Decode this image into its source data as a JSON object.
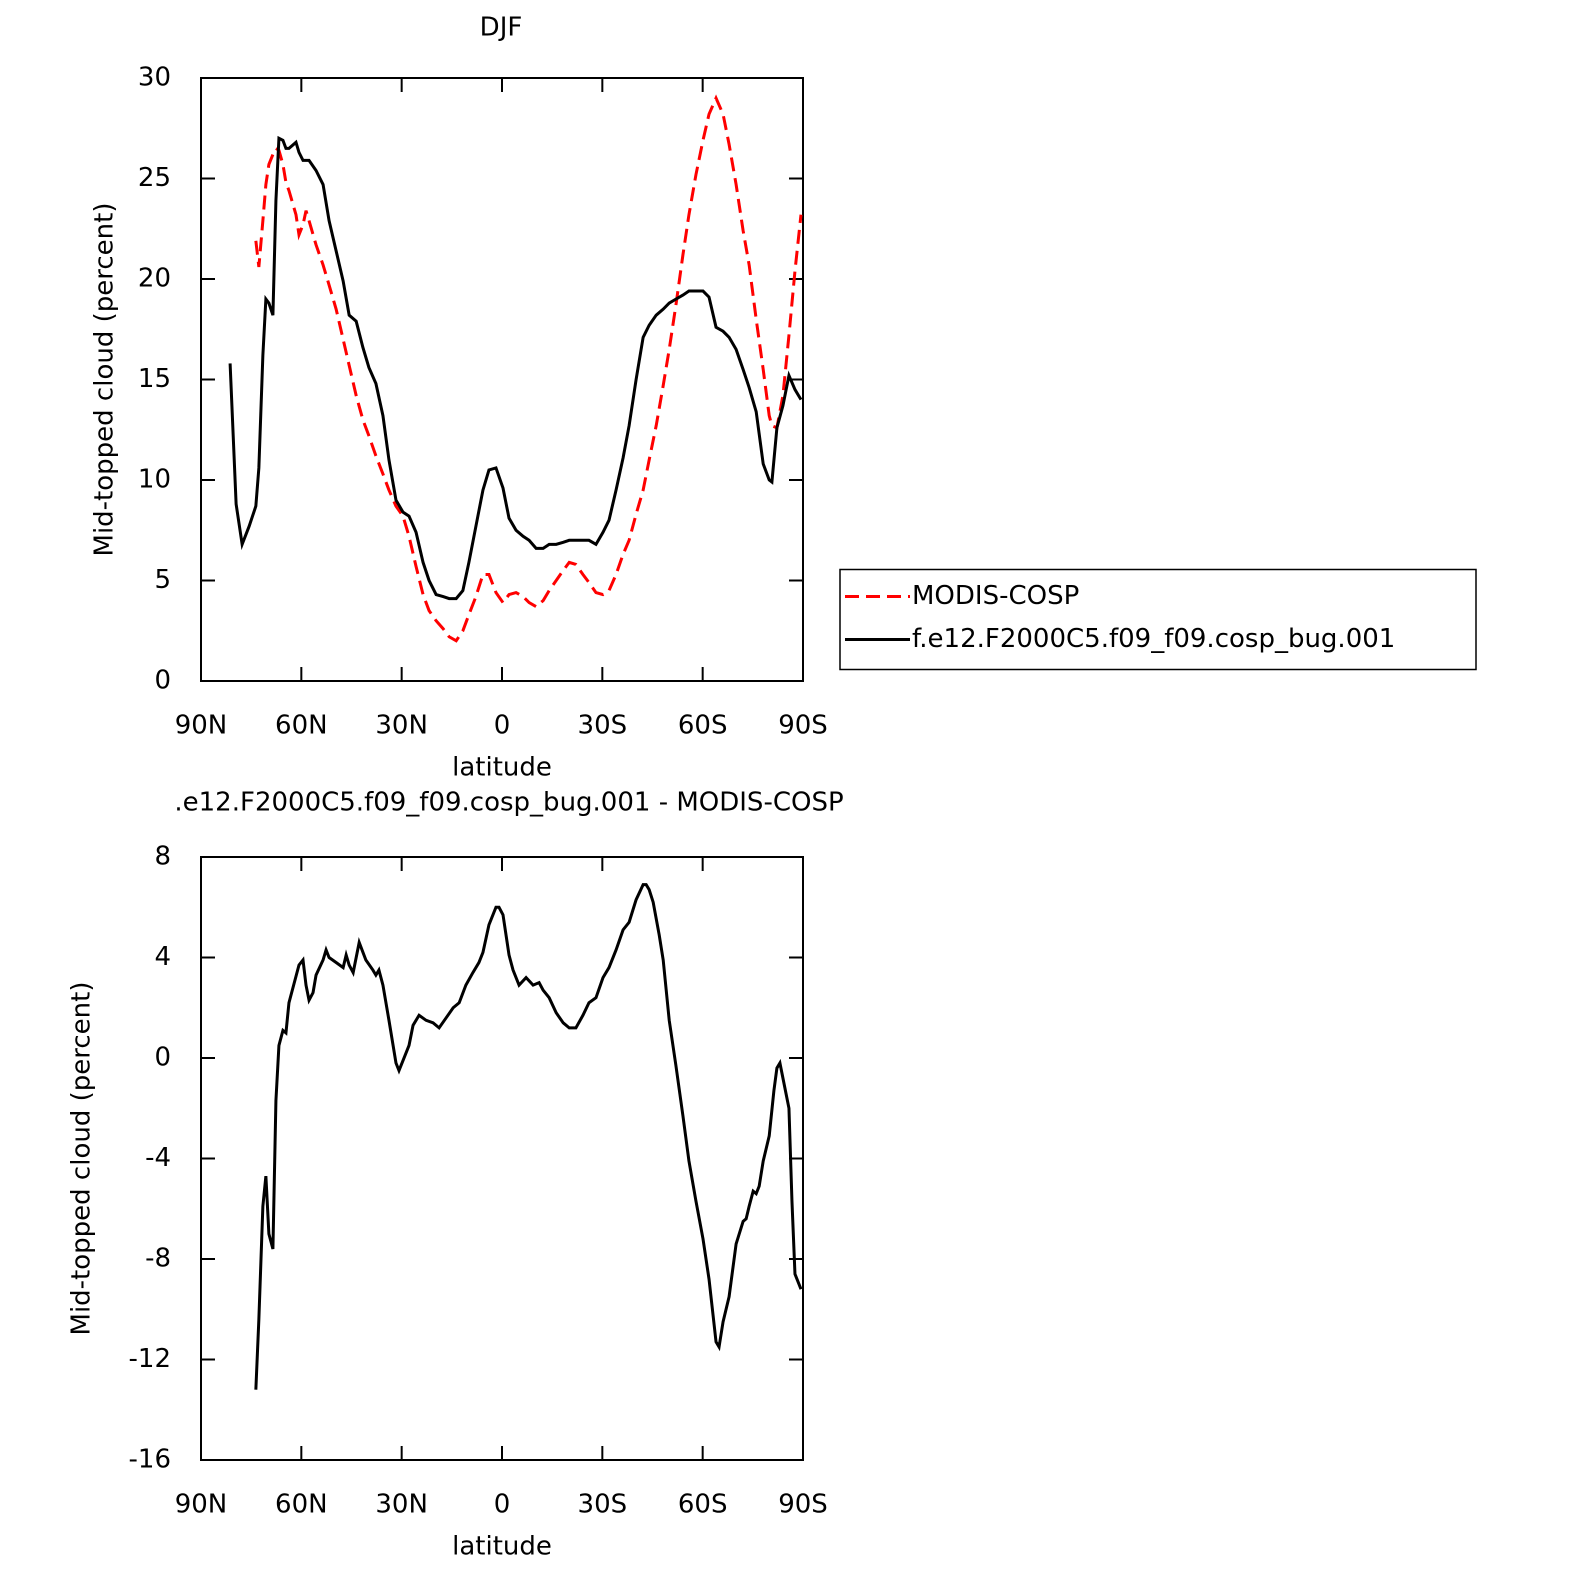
{
  "chart_data": [
    {
      "type": "line",
      "title": "DJF",
      "xlabel": "latitude",
      "ylabel": "Mid-topped cloud (percent)",
      "xlim": [
        90,
        -90
      ],
      "xticks": [
        {
          "value": 90,
          "label": "90N"
        },
        {
          "value": 60,
          "label": "60N"
        },
        {
          "value": 30,
          "label": "30N"
        },
        0,
        {
          "value": -30,
          "label": "30S"
        },
        {
          "value": -60,
          "label": "60S"
        },
        {
          "value": -90,
          "label": "90S"
        }
      ],
      "ylim": [
        0,
        30
      ],
      "yticks": [
        0,
        5,
        10,
        15,
        20,
        25,
        30
      ],
      "legend": "right",
      "x": [
        81.3,
        79.5,
        77.7,
        75.6,
        73.6,
        72.7,
        71.5,
        70.6,
        69.7,
        68.5,
        67.6,
        66.7,
        65.5,
        64.6,
        63.7,
        61.6,
        60.7,
        59.5,
        58.6,
        57.7,
        55.6,
        53.5,
        51.7,
        49.6,
        47.5,
        45.7,
        43.6,
        41.6,
        39.8,
        37.7,
        35.6,
        33.8,
        31.7,
        29.6,
        27.8,
        25.7,
        23.6,
        21.8,
        19.7,
        17.6,
        15.8,
        13.7,
        11.7,
        9.9,
        7.8,
        5.7,
        3.9,
        1.8,
        -0.3,
        -2.1,
        -4.2,
        -6.3,
        -8.1,
        -10.2,
        -12.3,
        -14.1,
        -16.2,
        -18.3,
        -20.1,
        -22.1,
        -24.2,
        -26.0,
        -28.1,
        -30.2,
        -32.0,
        -34.1,
        -36.2,
        -38.0,
        -40.1,
        -42.2,
        -44.0,
        -46.1,
        -48.2,
        -50.0,
        -52.0,
        -54.1,
        -55.9,
        -58.0,
        -60.1,
        -61.9,
        -64.0,
        -66.1,
        -67.9,
        -70.0,
        -72.1,
        -73.9,
        -76.0,
        -78.1,
        -79.9,
        -80.7,
        -82.2,
        -84.0,
        -85.8,
        -87.6,
        -89.4
      ],
      "series": [
        {
          "name": "MODIS-COSP",
          "color": "#ff0000",
          "linestyle": "dashed",
          "values": [
            null,
            null,
            null,
            null,
            21.9,
            20.6,
            22.9,
            24.7,
            25.7,
            26.2,
            26.5,
            26.4,
            25.7,
            24.8,
            24.4,
            23.2,
            22.2,
            22.7,
            23.4,
            22.9,
            21.7,
            20.7,
            19.7,
            18.5,
            17.0,
            15.7,
            14.2,
            13.0,
            12.2,
            11.2,
            10.3,
            9.5,
            8.7,
            8.2,
            7.2,
            5.7,
            4.3,
            3.5,
            3.0,
            2.6,
            2.2,
            2.0,
            2.5,
            3.3,
            4.2,
            5.3,
            5.3,
            4.4,
            3.9,
            4.3,
            4.4,
            4.2,
            3.9,
            3.7,
            4.0,
            4.5,
            5.0,
            5.5,
            5.9,
            5.8,
            5.3,
            4.9,
            4.4,
            4.3,
            4.5,
            5.3,
            6.3,
            7.0,
            8.3,
            9.5,
            11.0,
            12.7,
            14.7,
            16.5,
            18.7,
            21.2,
            23.2,
            25.2,
            26.9,
            28.2,
            29.0,
            28.2,
            26.7,
            24.7,
            22.4,
            20.7,
            18.0,
            15.5,
            13.2,
            12.7,
            12.6,
            14.2,
            17.2,
            20.4,
            23.2
          ]
        },
        {
          "name": "f.e12.F2000C5.f09_f09.cosp_bug.001",
          "color": "#000000",
          "linestyle": "solid",
          "values": [
            15.8,
            8.8,
            6.8,
            7.7,
            8.7,
            10.6,
            16.2,
            19.0,
            18.8,
            18.2,
            23.9,
            27.0,
            26.9,
            26.5,
            26.5,
            26.8,
            26.3,
            25.9,
            25.9,
            25.9,
            25.4,
            24.7,
            22.9,
            21.4,
            19.9,
            18.2,
            17.9,
            16.6,
            15.6,
            14.8,
            13.2,
            11.0,
            9.0,
            8.4,
            8.2,
            7.4,
            5.9,
            5.0,
            4.3,
            4.2,
            4.1,
            4.1,
            4.5,
            5.9,
            7.7,
            9.5,
            10.5,
            10.6,
            9.6,
            8.1,
            7.5,
            7.2,
            7.0,
            6.6,
            6.6,
            6.8,
            6.8,
            6.9,
            7.0,
            7.0,
            7.0,
            7.0,
            6.8,
            7.4,
            8.0,
            9.5,
            11.1,
            12.7,
            15.0,
            17.1,
            17.7,
            18.2,
            18.5,
            18.8,
            19.0,
            19.2,
            19.4,
            19.4,
            19.4,
            19.1,
            17.6,
            17.4,
            17.1,
            16.5,
            15.5,
            14.6,
            13.4,
            10.8,
            10.0,
            9.9,
            12.6,
            13.7,
            15.2,
            14.5,
            14.0
          ]
        }
      ]
    },
    {
      "type": "line",
      "title": ".e12.F2000C5.f09_f09.cosp_bug.001 - MODIS-COSP",
      "xlabel": "latitude",
      "ylabel": "Mid-topped cloud (percent)",
      "xlim": [
        90,
        -90
      ],
      "xticks": [
        {
          "value": 90,
          "label": "90N"
        },
        {
          "value": 60,
          "label": "60N"
        },
        {
          "value": 30,
          "label": "30N"
        },
        0,
        {
          "value": -30,
          "label": "30S"
        },
        {
          "value": -60,
          "label": "60S"
        },
        {
          "value": -90,
          "label": "90S"
        }
      ],
      "ylim": [
        -16,
        8
      ],
      "yticks": [
        -16,
        -12,
        -8,
        -4,
        0,
        4,
        8
      ],
      "x": [
        73.6,
        72.7,
        71.5,
        70.6,
        69.7,
        68.5,
        67.6,
        66.7,
        65.5,
        64.6,
        63.7,
        60.7,
        59.5,
        58.6,
        57.7,
        56.5,
        55.6,
        53.5,
        52.6,
        51.7,
        49.6,
        47.5,
        46.6,
        45.7,
        44.5,
        42.7,
        40.7,
        38.6,
        37.7,
        36.8,
        35.6,
        33.8,
        31.7,
        30.8,
        29.6,
        27.8,
        26.6,
        24.8,
        22.7,
        20.6,
        18.8,
        16.7,
        14.6,
        12.8,
        10.8,
        8.7,
        6.9,
        5.7,
        3.9,
        1.8,
        0.9,
        -0.3,
        -1.2,
        -2.1,
        -3.3,
        -5.1,
        -7.2,
        -9.3,
        -11.1,
        -12.3,
        -14.1,
        -16.2,
        -18.3,
        -20.1,
        -22.1,
        -24.2,
        -26.0,
        -28.1,
        -30.2,
        -32.0,
        -34.1,
        -36.2,
        -38.0,
        -40.1,
        -42.2,
        -43.1,
        -44.0,
        -45.2,
        -47.0,
        -48.2,
        -50.0,
        -52.0,
        -54.1,
        -55.9,
        -58.0,
        -60.1,
        -61.9,
        -64.0,
        -64.9,
        -66.1,
        -67.9,
        -70.0,
        -72.1,
        -73.0,
        -73.9,
        -75.1,
        -76.0,
        -76.9,
        -78.1,
        -79.9,
        -81.3,
        -82.2,
        -83.1,
        -84.9,
        -85.8,
        -86.7,
        -87.6,
        -89.4
      ],
      "series": [
        {
          "color": "#000000",
          "linestyle": "solid",
          "values": [
            -13.2,
            -10.4,
            -5.9,
            -4.7,
            -7.0,
            -7.6,
            -1.7,
            0.5,
            1.1,
            1.0,
            2.2,
            3.7,
            3.9,
            2.9,
            2.3,
            2.6,
            3.3,
            3.9,
            4.3,
            4.0,
            3.8,
            3.6,
            4.1,
            3.7,
            3.4,
            4.6,
            3.9,
            3.5,
            3.3,
            3.5,
            2.9,
            1.5,
            -0.2,
            -0.5,
            -0.1,
            0.5,
            1.3,
            1.7,
            1.5,
            1.4,
            1.2,
            1.6,
            2.0,
            2.2,
            2.9,
            3.4,
            3.8,
            4.2,
            5.3,
            6.0,
            6.0,
            5.7,
            4.9,
            4.1,
            3.5,
            2.9,
            3.2,
            2.9,
            3.0,
            2.7,
            2.4,
            1.8,
            1.4,
            1.2,
            1.2,
            1.7,
            2.2,
            2.4,
            3.2,
            3.6,
            4.3,
            5.1,
            5.4,
            6.3,
            6.9,
            6.9,
            6.7,
            6.2,
            4.9,
            3.9,
            1.5,
            -0.3,
            -2.3,
            -4.1,
            -5.7,
            -7.2,
            -8.8,
            -11.3,
            -11.5,
            -10.5,
            -9.5,
            -7.4,
            -6.5,
            -6.4,
            -5.9,
            -5.3,
            -5.4,
            -5.1,
            -4.1,
            -3.1,
            -1.3,
            -0.4,
            -0.2,
            -1.4,
            -2.0,
            -5.7,
            -8.6,
            -9.2
          ]
        }
      ]
    }
  ]
}
